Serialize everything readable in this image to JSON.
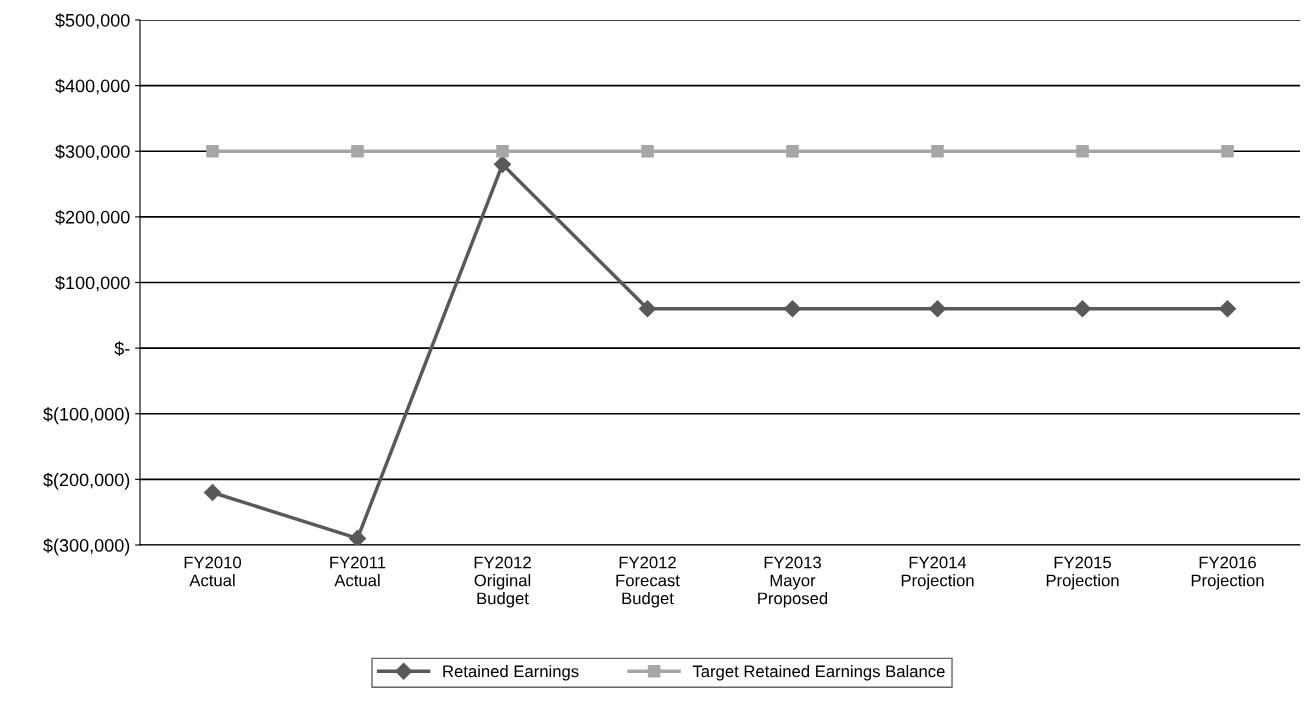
{
  "chart_data": {
    "type": "line",
    "categories": [
      "FY2010\nActual",
      "FY2011\nActual",
      "FY2012\nOriginal\nBudget",
      "FY2012\nForecast\nBudget",
      "FY2013\nMayor\nProposed",
      "FY2014\nProjection",
      "FY2015\nProjection",
      "FY2016\nProjection"
    ],
    "series": [
      {
        "name": "Retained Earnings",
        "color": "#595959",
        "marker": "diamond",
        "values": [
          -220000,
          -290000,
          280000,
          60000,
          60000,
          60000,
          60000,
          60000
        ]
      },
      {
        "name": "Target Retained Earnings Balance",
        "color": "#a6a6a6",
        "marker": "square",
        "values": [
          300000,
          300000,
          300000,
          300000,
          300000,
          300000,
          300000,
          300000
        ]
      }
    ],
    "ylim": [
      -300000,
      500000
    ],
    "yticks": [
      {
        "value": -300000,
        "label": "$(300,000)"
      },
      {
        "value": -200000,
        "label": "$(200,000)"
      },
      {
        "value": -100000,
        "label": "$(100,000)"
      },
      {
        "value": 0,
        "label": "$-"
      },
      {
        "value": 100000,
        "label": "$100,000"
      },
      {
        "value": 200000,
        "label": "$200,000"
      },
      {
        "value": 300000,
        "label": "$300,000"
      },
      {
        "value": 400000,
        "label": "$400,000"
      },
      {
        "value": 500000,
        "label": "$500,000"
      }
    ],
    "grid": "y",
    "legend": "bottom",
    "line_style": "solid"
  }
}
